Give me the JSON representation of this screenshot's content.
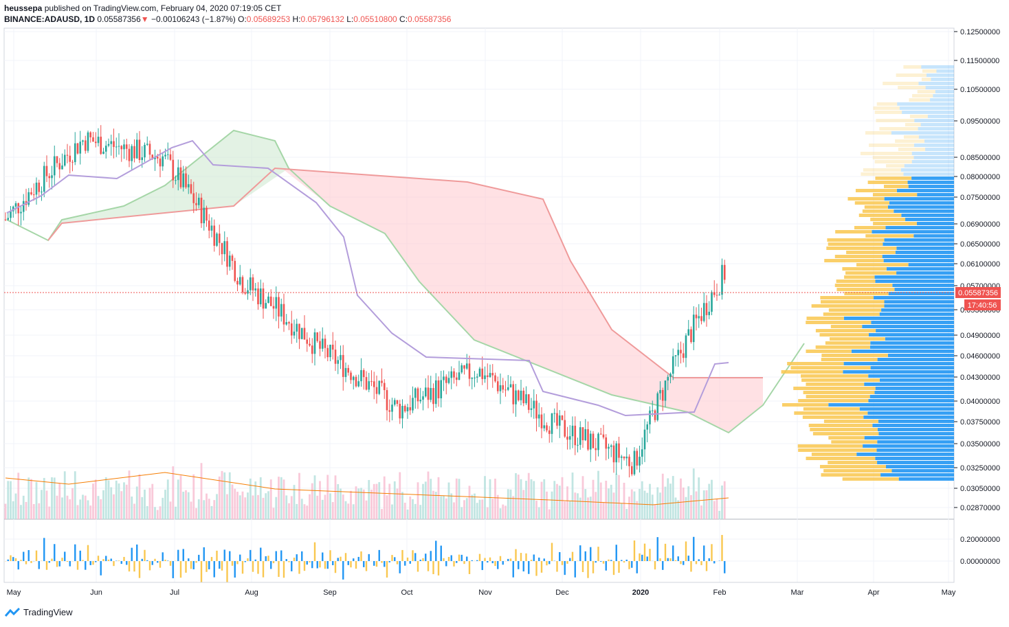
{
  "header": {
    "author": "heussepa",
    "published_text": "published on TradingView.com, February 04, 2020 07:19:05 CET",
    "symbol": "BINANCE:ADAUSD, 1D",
    "last": "0.05587356",
    "change": "−0.00106243 (−1.87%)",
    "o_label": "O:",
    "o": "0.05689253",
    "h_label": "H:",
    "h": "0.05796132",
    "l_label": "L:",
    "l": "0.05510800",
    "c_label": "C:",
    "c": "0.05587356"
  },
  "price_badge": "0.05587356",
  "timer_badge": "17:40:56",
  "footer": {
    "brand": "TradingView"
  },
  "colors": {
    "up": "#26a69a",
    "down": "#ef5350",
    "kumo_bull": "#c8e6c9",
    "kumo_bear": "#ffcdd2",
    "span_a": "#a5d6a7",
    "span_b": "#ef9a9a",
    "kijun": "#b39ddb",
    "vp_up": "#2196f3",
    "vp_down": "#f9c74f"
  },
  "chart_data": {
    "type": "candlestick",
    "interval": "1D",
    "y_axis_ticks": [
      "0.12500000",
      "0.11500000",
      "0.10500000",
      "0.09500000",
      "0.08500000",
      "0.08000000",
      "0.07500000",
      "0.06900000",
      "0.06500000",
      "0.06100000",
      "0.05700000",
      "0.05300000",
      "0.04900000",
      "0.04600000",
      "0.04300000",
      "0.04000000",
      "0.03750000",
      "0.03500000",
      "0.03250000",
      "0.03050000",
      "0.02870000"
    ],
    "ylim": [
      0.0275,
      0.135
    ],
    "x_axis_ticks": [
      "May",
      "Jun",
      "Jul",
      "Aug",
      "Sep",
      "Oct",
      "Nov",
      "Dec",
      "2020",
      "Feb",
      "Mar",
      "Apr",
      "May"
    ],
    "osc_ticks": [
      "0.20000000",
      "0.00000000"
    ],
    "monthly_closes": [
      {
        "month": "May",
        "close": 0.07
      },
      {
        "month": "Jun",
        "close": 0.09
      },
      {
        "month": "Jul",
        "close": 0.085
      },
      {
        "month": "Aug",
        "close": 0.058
      },
      {
        "month": "Sep",
        "close": 0.047
      },
      {
        "month": "Oct",
        "close": 0.039
      },
      {
        "month": "Nov",
        "close": 0.044
      },
      {
        "month": "Dec",
        "close": 0.037
      },
      {
        "month": "2020",
        "close": 0.033
      },
      {
        "month": "Feb",
        "close": 0.0559
      }
    ],
    "last_price": 0.05587356,
    "session_high": 0.05796132,
    "session_low": 0.055108
  }
}
